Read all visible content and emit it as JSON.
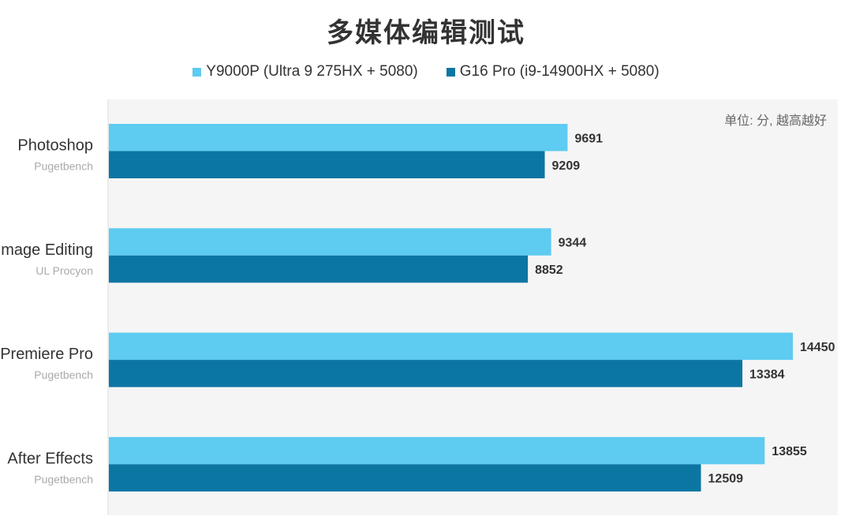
{
  "chart_data": {
    "type": "bar",
    "orientation": "horizontal",
    "title": "多媒体编辑测试",
    "unit_note": "单位: 分, 越高越好",
    "categories": [
      {
        "label": "Photoshop",
        "sub": "Pugetbench"
      },
      {
        "label": "Image Editing",
        "sub": "UL Procyon"
      },
      {
        "label": "Premiere Pro",
        "sub": "Pugetbench"
      },
      {
        "label": "After Effects",
        "sub": "Pugetbench"
      }
    ],
    "series": [
      {
        "name": "Y9000P (Ultra 9 275HX + 5080)",
        "color": "#5ecbf0",
        "values": [
          9691,
          9344,
          14450,
          13855
        ]
      },
      {
        "name": "G16 Pro (i9-14900HX + 5080)",
        "color": "#0c76a3",
        "values": [
          9209,
          8852,
          13384,
          12509
        ]
      }
    ],
    "xlim": [
      0,
      15400
    ],
    "legend_position": "top-center",
    "grid": false
  }
}
